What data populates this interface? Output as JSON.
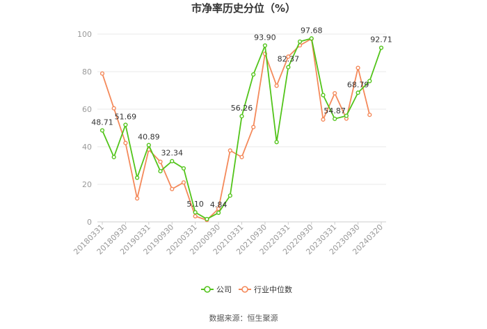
{
  "chart_data": {
    "type": "line",
    "title": "市净率历史分位（%）",
    "ylim": [
      0,
      100
    ],
    "y_ticks": [
      0,
      20,
      40,
      60,
      80,
      100
    ],
    "grid": true,
    "legend_position": "bottom",
    "x_tick_labels": [
      "20180331",
      "20180930",
      "20190331",
      "20190930",
      "20200331",
      "20200930",
      "20210331",
      "20210930",
      "20220331",
      "20220930",
      "20230331",
      "20230930",
      "20240320"
    ],
    "x": [
      "20180331",
      "20180630",
      "20180930",
      "20181231",
      "20190331",
      "20190630",
      "20190930",
      "20191231",
      "20200331",
      "20200630",
      "20200930",
      "20201231",
      "20210331",
      "20210630",
      "20210930",
      "20211231",
      "20220331",
      "20220630",
      "20220930",
      "20221231",
      "20230331",
      "20230630",
      "20230930",
      "20231231",
      "20240320"
    ],
    "series": [
      {
        "name": "公司",
        "color": "#52c41a",
        "values": [
          48.71,
          34.5,
          51.69,
          23.5,
          40.89,
          27.0,
          32.34,
          28.5,
          5.1,
          1.5,
          4.84,
          14.0,
          56.26,
          78.5,
          93.9,
          42.5,
          82.37,
          96.0,
          97.68,
          67.5,
          54.87,
          56.5,
          68.79,
          75.0,
          92.71
        ]
      },
      {
        "name": "行业中位数",
        "color": "#f4895a",
        "values": [
          79.0,
          60.5,
          42.0,
          12.5,
          38.5,
          32.0,
          17.5,
          21.0,
          3.0,
          1.0,
          7.0,
          38.0,
          34.5,
          50.5,
          89.5,
          72.5,
          88.0,
          94.0,
          97.5,
          54.5,
          68.5,
          55.0,
          82.0,
          57.0,
          null
        ]
      }
    ],
    "data_labels": [
      {
        "series": 0,
        "index": 0,
        "text": "48.71"
      },
      {
        "series": 0,
        "index": 2,
        "text": "51.69"
      },
      {
        "series": 0,
        "index": 4,
        "text": "40.89"
      },
      {
        "series": 0,
        "index": 6,
        "text": "32.34"
      },
      {
        "series": 0,
        "index": 8,
        "text": "5.10"
      },
      {
        "series": 0,
        "index": 10,
        "text": "4.84"
      },
      {
        "series": 0,
        "index": 12,
        "text": "56.26"
      },
      {
        "series": 0,
        "index": 14,
        "text": "93.90"
      },
      {
        "series": 0,
        "index": 16,
        "text": "82.37"
      },
      {
        "series": 0,
        "index": 18,
        "text": "97.68"
      },
      {
        "series": 0,
        "index": 20,
        "text": "54.87"
      },
      {
        "series": 0,
        "index": 22,
        "text": "68.79"
      },
      {
        "series": 0,
        "index": 24,
        "text": "92.71"
      }
    ]
  },
  "source": "数据来源：恒生聚源"
}
